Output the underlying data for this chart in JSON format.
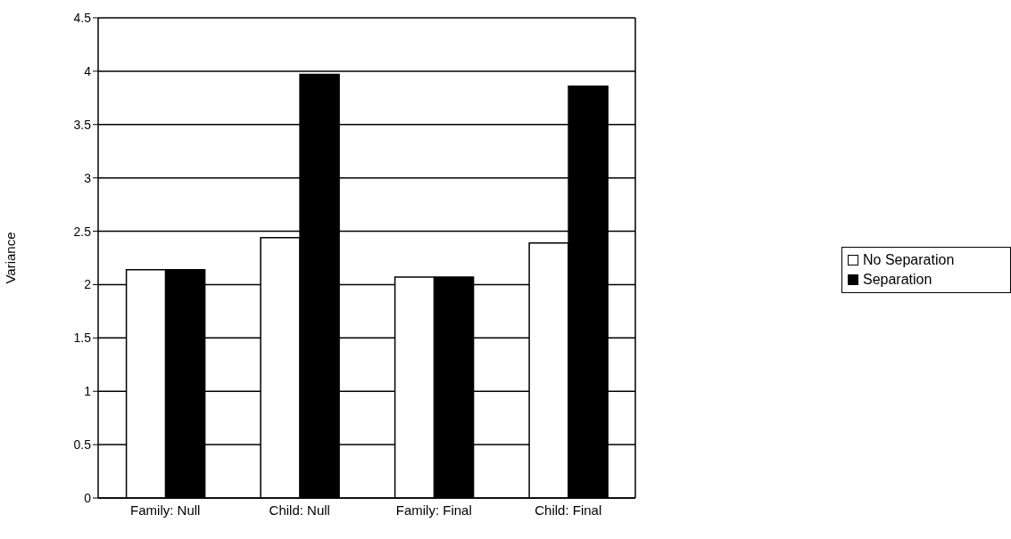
{
  "chart_data": {
    "type": "bar",
    "ylabel": "Variance",
    "categories": [
      "Family: Null",
      "Child: Null",
      "Family: Final",
      "Child: Final"
    ],
    "series": [
      {
        "name": "No Separation",
        "color": "#ffffff",
        "values": [
          2.14,
          2.44,
          2.07,
          2.39
        ]
      },
      {
        "name": "Separation",
        "color": "#000000",
        "values": [
          2.14,
          3.97,
          2.07,
          3.86
        ]
      }
    ],
    "ylim": [
      0,
      4.5
    ],
    "yticks": [
      0,
      0.5,
      1,
      1.5,
      2,
      2.5,
      3,
      3.5,
      4,
      4.5
    ],
    "grid": "y",
    "legend": "right"
  }
}
